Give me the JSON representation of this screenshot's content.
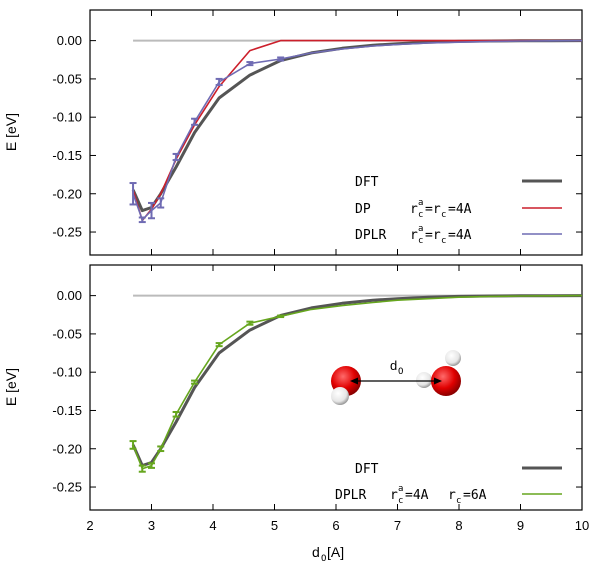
{
  "colors": {
    "dft": "#555555",
    "dp": "#cc1f2b",
    "dplr": "#6f6bb3",
    "dplr2": "#66a61e",
    "zero": "#bbbbbb"
  },
  "chart_data": [
    {
      "type": "line",
      "ylabel": "E [eV]",
      "xlim": [
        2,
        10
      ],
      "ylim": [
        -0.28,
        0.04
      ],
      "yticks": [
        "0.00",
        "-0.05",
        "-0.10",
        "-0.15",
        "-0.20",
        "-0.25"
      ],
      "zero_line": {
        "x": [
          2.7,
          10
        ],
        "y": [
          0,
          0
        ]
      },
      "legend": {
        "dft": {
          "label": "DFT"
        },
        "dp": {
          "label": "DP",
          "annotation": "r",
          "sup": "a",
          "sub": "c",
          "eq": "=r",
          "sub2": "c",
          "rest": "=4A"
        },
        "dplr": {
          "label": "DPLR",
          "annotation": "r",
          "sup": "a",
          "sub": "c",
          "eq": "=r",
          "sub2": "c",
          "rest": "=4A"
        }
      },
      "series": [
        {
          "name": "DFT",
          "x": [
            2.7,
            2.85,
            3.0,
            3.15,
            3.4,
            3.7,
            4.1,
            4.6,
            5.1,
            5.6,
            6.1,
            6.6,
            7.0,
            7.5,
            8.0,
            8.5,
            9.0,
            9.5,
            10.0
          ],
          "y": [
            -0.195,
            -0.222,
            -0.218,
            -0.2,
            -0.165,
            -0.12,
            -0.075,
            -0.045,
            -0.026,
            -0.016,
            -0.01,
            -0.006,
            -0.004,
            -0.002,
            -0.001,
            -0.0005,
            -0.0002,
            -0.0001,
            0.0
          ]
        },
        {
          "name": "DP",
          "x": [
            2.7,
            2.85,
            3.0,
            3.15,
            3.4,
            3.7,
            4.1,
            4.6,
            5.1,
            6.0,
            7.0,
            8.0,
            9.0,
            10.0
          ],
          "y": [
            -0.195,
            -0.235,
            -0.22,
            -0.2,
            -0.155,
            -0.11,
            -0.06,
            -0.013,
            0.0,
            0.0,
            0.0,
            0.0,
            0.0,
            0.0
          ]
        },
        {
          "name": "DPLR",
          "x": [
            2.7,
            2.85,
            3.0,
            3.15,
            3.4,
            3.7,
            4.1,
            4.6,
            5.1,
            5.6,
            6.1,
            6.6,
            7.0,
            7.5,
            8.0,
            8.5,
            9.0,
            9.5,
            10.0
          ],
          "y": [
            -0.2,
            -0.234,
            -0.222,
            -0.212,
            -0.152,
            -0.106,
            -0.054,
            -0.03,
            -0.024,
            -0.016,
            -0.011,
            -0.007,
            -0.005,
            -0.003,
            -0.002,
            -0.001,
            -0.0005,
            -0.0002,
            0.0
          ],
          "err": [
            0.014,
            0.003,
            0.01,
            0.006,
            0.004,
            0.004,
            0.004,
            0.002,
            0.002,
            0.001,
            0.001,
            0.001,
            0.001,
            0.001,
            0.001,
            0.001,
            0.001,
            0.001,
            0.001
          ]
        }
      ]
    },
    {
      "type": "line",
      "xlabel": "d",
      "xlabel_sub": "O",
      "xlabel_unit": " [A]",
      "ylabel": "E [eV]",
      "xlim": [
        2,
        10
      ],
      "ylim": [
        -0.28,
        0.04
      ],
      "xticks": [
        "2",
        "3",
        "4",
        "5",
        "6",
        "7",
        "8",
        "9",
        "10"
      ],
      "yticks": [
        "0.00",
        "-0.05",
        "-0.10",
        "-0.15",
        "-0.20",
        "-0.25"
      ],
      "zero_line": {
        "x": [
          2.7,
          10
        ],
        "y": [
          0,
          0
        ]
      },
      "legend": {
        "dft": {
          "label": "DFT"
        },
        "dplr": {
          "label": "DPLR",
          "annotation": "r",
          "sup": "a",
          "sub": "c",
          "eq": "=4A",
          "annotation2": "r",
          "sub2": "c",
          "rest": "=6A"
        }
      },
      "inset": {
        "label": "d",
        "label_sub": "O"
      },
      "series": [
        {
          "name": "DFT",
          "x": [
            2.7,
            2.85,
            3.0,
            3.15,
            3.4,
            3.7,
            4.1,
            4.6,
            5.1,
            5.6,
            6.1,
            6.6,
            7.0,
            7.5,
            8.0,
            8.5,
            9.0,
            9.5,
            10.0
          ],
          "y": [
            -0.195,
            -0.222,
            -0.218,
            -0.2,
            -0.165,
            -0.12,
            -0.075,
            -0.045,
            -0.026,
            -0.016,
            -0.01,
            -0.006,
            -0.004,
            -0.002,
            -0.001,
            -0.0005,
            -0.0002,
            -0.0001,
            0.0
          ]
        },
        {
          "name": "DPLR",
          "x": [
            2.7,
            2.85,
            3.0,
            3.15,
            3.4,
            3.7,
            4.1,
            4.6,
            5.1,
            5.6,
            6.1,
            6.6,
            7.0,
            7.5,
            8.0,
            8.5,
            9.0,
            9.5,
            10.0
          ],
          "y": [
            -0.195,
            -0.226,
            -0.222,
            -0.2,
            -0.155,
            -0.113,
            -0.064,
            -0.036,
            -0.027,
            -0.018,
            -0.013,
            -0.009,
            -0.006,
            -0.004,
            -0.002,
            -0.001,
            -0.0005,
            -0.0002,
            0.0
          ],
          "err": [
            0.005,
            0.004,
            0.003,
            0.003,
            0.003,
            0.002,
            0.002,
            0.002,
            0.001,
            0.001,
            0.001,
            0.001,
            0.001,
            0.001,
            0.001,
            0.001,
            0.001,
            0.001,
            0.001
          ]
        }
      ]
    }
  ]
}
